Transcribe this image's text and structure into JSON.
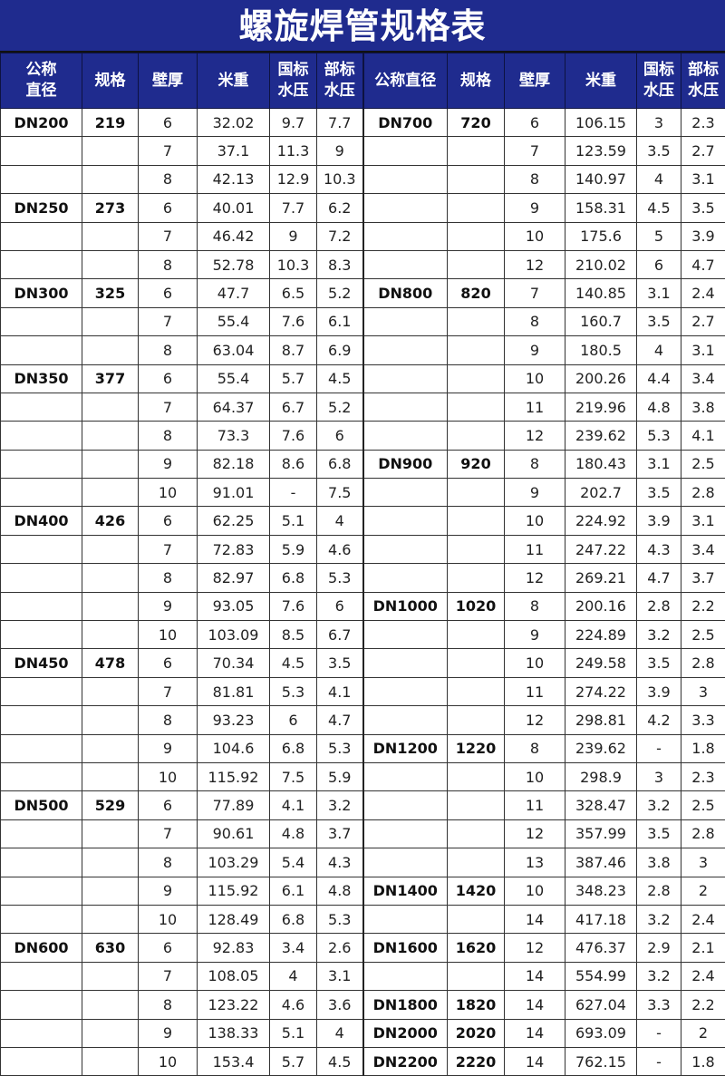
{
  "title": "螺旋焊管规格表",
  "colors": {
    "header_bg": "#1f2b8e",
    "header_text": "#ffffff"
  },
  "headers": {
    "left": [
      "公称\n直径",
      "规格",
      "壁厚",
      "米重",
      "国标\n水压",
      "部标\n水压"
    ],
    "right": [
      "公称直径",
      "规格",
      "壁厚",
      "米重",
      "国标\n水压",
      "部标\n水压"
    ]
  },
  "left_rows": [
    [
      "DN200",
      "219",
      "6",
      "32.02",
      "9.7",
      "7.7"
    ],
    [
      "",
      "",
      "7",
      "37.1",
      "11.3",
      "9"
    ],
    [
      "",
      "",
      "8",
      "42.13",
      "12.9",
      "10.3"
    ],
    [
      "DN250",
      "273",
      "6",
      "40.01",
      "7.7",
      "6.2"
    ],
    [
      "",
      "",
      "7",
      "46.42",
      "9",
      "7.2"
    ],
    [
      "",
      "",
      "8",
      "52.78",
      "10.3",
      "8.3"
    ],
    [
      "DN300",
      "325",
      "6",
      "47.7",
      "6.5",
      "5.2"
    ],
    [
      "",
      "",
      "7",
      "55.4",
      "7.6",
      "6.1"
    ],
    [
      "",
      "",
      "8",
      "63.04",
      "8.7",
      "6.9"
    ],
    [
      "DN350",
      "377",
      "6",
      "55.4",
      "5.7",
      "4.5"
    ],
    [
      "",
      "",
      "7",
      "64.37",
      "6.7",
      "5.2"
    ],
    [
      "",
      "",
      "8",
      "73.3",
      "7.6",
      "6"
    ],
    [
      "",
      "",
      "9",
      "82.18",
      "8.6",
      "6.8"
    ],
    [
      "",
      "",
      "10",
      "91.01",
      "-",
      "7.5"
    ],
    [
      "DN400",
      "426",
      "6",
      "62.25",
      "5.1",
      "4"
    ],
    [
      "",
      "",
      "7",
      "72.83",
      "5.9",
      "4.6"
    ],
    [
      "",
      "",
      "8",
      "82.97",
      "6.8",
      "5.3"
    ],
    [
      "",
      "",
      "9",
      "93.05",
      "7.6",
      "6"
    ],
    [
      "",
      "",
      "10",
      "103.09",
      "8.5",
      "6.7"
    ],
    [
      "DN450",
      "478",
      "6",
      "70.34",
      "4.5",
      "3.5"
    ],
    [
      "",
      "",
      "7",
      "81.81",
      "5.3",
      "4.1"
    ],
    [
      "",
      "",
      "8",
      "93.23",
      "6",
      "4.7"
    ],
    [
      "",
      "",
      "9",
      "104.6",
      "6.8",
      "5.3"
    ],
    [
      "",
      "",
      "10",
      "115.92",
      "7.5",
      "5.9"
    ],
    [
      "DN500",
      "529",
      "6",
      "77.89",
      "4.1",
      "3.2"
    ],
    [
      "",
      "",
      "7",
      "90.61",
      "4.8",
      "3.7"
    ],
    [
      "",
      "",
      "8",
      "103.29",
      "5.4",
      "4.3"
    ],
    [
      "",
      "",
      "9",
      "115.92",
      "6.1",
      "4.8"
    ],
    [
      "",
      "",
      "10",
      "128.49",
      "6.8",
      "5.3"
    ],
    [
      "DN600",
      "630",
      "6",
      "92.83",
      "3.4",
      "2.6"
    ],
    [
      "",
      "",
      "7",
      "108.05",
      "4",
      "3.1"
    ],
    [
      "",
      "",
      "8",
      "123.22",
      "4.6",
      "3.6"
    ],
    [
      "",
      "",
      "9",
      "138.33",
      "5.1",
      "4"
    ],
    [
      "",
      "",
      "10",
      "153.4",
      "5.7",
      "4.5"
    ]
  ],
  "right_rows": [
    [
      "DN700",
      "720",
      "6",
      "106.15",
      "3",
      "2.3"
    ],
    [
      "",
      "",
      "7",
      "123.59",
      "3.5",
      "2.7"
    ],
    [
      "",
      "",
      "8",
      "140.97",
      "4",
      "3.1"
    ],
    [
      "",
      "",
      "9",
      "158.31",
      "4.5",
      "3.5"
    ],
    [
      "",
      "",
      "10",
      "175.6",
      "5",
      "3.9"
    ],
    [
      "",
      "",
      "12",
      "210.02",
      "6",
      "4.7"
    ],
    [
      "DN800",
      "820",
      "7",
      "140.85",
      "3.1",
      "2.4"
    ],
    [
      "",
      "",
      "8",
      "160.7",
      "3.5",
      "2.7"
    ],
    [
      "",
      "",
      "9",
      "180.5",
      "4",
      "3.1"
    ],
    [
      "",
      "",
      "10",
      "200.26",
      "4.4",
      "3.4"
    ],
    [
      "",
      "",
      "11",
      "219.96",
      "4.8",
      "3.8"
    ],
    [
      "",
      "",
      "12",
      "239.62",
      "5.3",
      "4.1"
    ],
    [
      "DN900",
      "920",
      "8",
      "180.43",
      "3.1",
      "2.5"
    ],
    [
      "",
      "",
      "9",
      "202.7",
      "3.5",
      "2.8"
    ],
    [
      "",
      "",
      "10",
      "224.92",
      "3.9",
      "3.1"
    ],
    [
      "",
      "",
      "11",
      "247.22",
      "4.3",
      "3.4"
    ],
    [
      "",
      "",
      "12",
      "269.21",
      "4.7",
      "3.7"
    ],
    [
      "DN1000",
      "1020",
      "8",
      "200.16",
      "2.8",
      "2.2"
    ],
    [
      "",
      "",
      "9",
      "224.89",
      "3.2",
      "2.5"
    ],
    [
      "",
      "",
      "10",
      "249.58",
      "3.5",
      "2.8"
    ],
    [
      "",
      "",
      "11",
      "274.22",
      "3.9",
      "3"
    ],
    [
      "",
      "",
      "12",
      "298.81",
      "4.2",
      "3.3"
    ],
    [
      "DN1200",
      "1220",
      "8",
      "239.62",
      "-",
      "1.8"
    ],
    [
      "",
      "",
      "10",
      "298.9",
      "3",
      "2.3"
    ],
    [
      "",
      "",
      "11",
      "328.47",
      "3.2",
      "2.5"
    ],
    [
      "",
      "",
      "12",
      "357.99",
      "3.5",
      "2.8"
    ],
    [
      "",
      "",
      "13",
      "387.46",
      "3.8",
      "3"
    ],
    [
      "DN1400",
      "1420",
      "10",
      "348.23",
      "2.8",
      "2"
    ],
    [
      "",
      "",
      "14",
      "417.18",
      "3.2",
      "2.4"
    ],
    [
      "DN1600",
      "1620",
      "12",
      "476.37",
      "2.9",
      "2.1"
    ],
    [
      "",
      "",
      "14",
      "554.99",
      "3.2",
      "2.4"
    ],
    [
      "DN1800",
      "1820",
      "14",
      "627.04",
      "3.3",
      "2.2"
    ],
    [
      "DN2000",
      "2020",
      "14",
      "693.09",
      "-",
      "2"
    ],
    [
      "DN2200",
      "2220",
      "14",
      "762.15",
      "-",
      "1.8"
    ]
  ]
}
